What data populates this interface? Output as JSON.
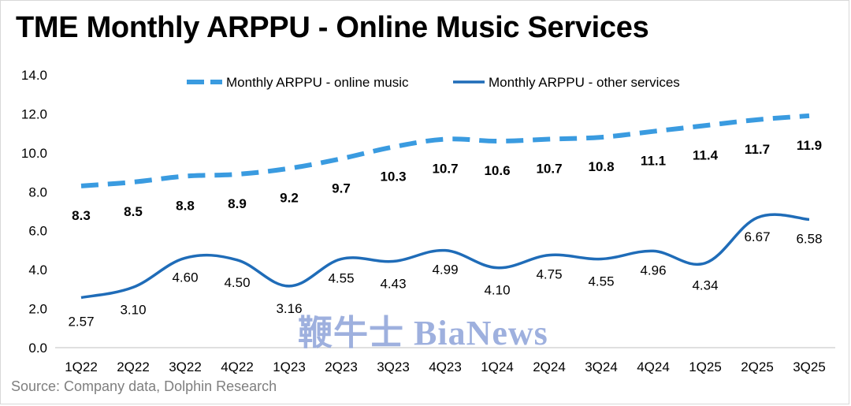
{
  "page": {
    "title": "TME Monthly ARPPU - Online Music Services",
    "source": "Source: Company data, Dolphin Research",
    "watermark": "鞭牛士 BiaNews"
  },
  "chart_data": {
    "type": "line",
    "categories": [
      "1Q22",
      "2Q22",
      "3Q22",
      "4Q22",
      "1Q23",
      "2Q23",
      "3Q23",
      "4Q23",
      "1Q24",
      "2Q24",
      "3Q24",
      "4Q24",
      "1Q25",
      "2Q25",
      "3Q25"
    ],
    "ylim": [
      0,
      14
    ],
    "yticks": [
      "0.0",
      "2.0",
      "4.0",
      "6.0",
      "8.0",
      "10.0",
      "12.0",
      "14.0"
    ],
    "legend_position": "top",
    "grid": false,
    "series": [
      {
        "name": "Monthly ARPPU - online music",
        "style": "dashed",
        "color": "#3a9be0",
        "values": [
          8.3,
          8.5,
          8.8,
          8.9,
          9.2,
          9.7,
          10.3,
          10.7,
          10.6,
          10.7,
          10.8,
          11.1,
          11.4,
          11.7,
          11.9
        ],
        "labels": [
          "8.3",
          "8.5",
          "8.8",
          "8.9",
          "9.2",
          "9.7",
          "10.3",
          "10.7",
          "10.6",
          "10.7",
          "10.8",
          "11.1",
          "11.4",
          "11.7",
          "11.9"
        ]
      },
      {
        "name": "Monthly ARPPU - other services",
        "style": "solid",
        "color": "#1f6cb8",
        "values": [
          2.57,
          3.1,
          4.6,
          4.5,
          3.16,
          4.55,
          4.43,
          4.99,
          4.1,
          4.75,
          4.55,
          4.96,
          4.34,
          6.67,
          6.58
        ],
        "labels": [
          "2.57",
          "3.10",
          "4.60",
          "4.50",
          "3.16",
          "4.55",
          "4.43",
          "4.99",
          "4.10",
          "4.75",
          "4.55",
          "4.96",
          "4.34",
          "6.67",
          "6.58"
        ]
      }
    ]
  }
}
